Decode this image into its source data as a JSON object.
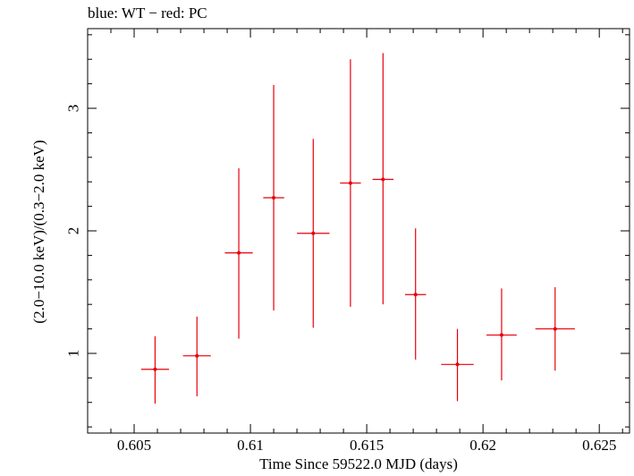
{
  "chart_data": {
    "type": "scatter",
    "title": "blue: WT − red: PC",
    "xlabel": "Time Since 59522.0 MJD (days)",
    "ylabel": "(2.0−10.0 keV)/(0.3−2.0 keV)",
    "xlim": [
      0.603,
      0.6263
    ],
    "ylim": [
      0.35,
      3.65
    ],
    "x_ticks": [
      0.605,
      0.61,
      0.615,
      0.62,
      0.625
    ],
    "x_tick_labels": [
      "0.605",
      "0.61",
      "0.615",
      "0.62",
      "0.625"
    ],
    "y_ticks": [
      1,
      2,
      3
    ],
    "y_tick_labels": [
      "1",
      "2",
      "3"
    ],
    "grid": false,
    "legend": "none",
    "series": [
      {
        "color": "#e8000b",
        "points": [
          {
            "x": 0.6059,
            "xerr": 0.0006,
            "y": 0.87,
            "ylo": 0.59,
            "yhi": 1.14
          },
          {
            "x": 0.6077,
            "xerr": 0.0006,
            "y": 0.98,
            "ylo": 0.65,
            "yhi": 1.3
          },
          {
            "x": 0.6095,
            "xerr": 0.0006,
            "y": 1.82,
            "ylo": 1.12,
            "yhi": 2.51
          },
          {
            "x": 0.611,
            "xerr": 0.00045,
            "y": 2.27,
            "ylo": 1.35,
            "yhi": 3.19
          },
          {
            "x": 0.6127,
            "xerr": 0.0007,
            "y": 1.98,
            "ylo": 1.21,
            "yhi": 2.75
          },
          {
            "x": 0.6143,
            "xerr": 0.00045,
            "y": 2.39,
            "ylo": 1.38,
            "yhi": 3.4
          },
          {
            "x": 0.6157,
            "xerr": 0.00045,
            "y": 2.42,
            "ylo": 1.4,
            "yhi": 3.45
          },
          {
            "x": 0.6171,
            "xerr": 0.00045,
            "y": 1.48,
            "ylo": 0.95,
            "yhi": 2.02
          },
          {
            "x": 0.6189,
            "xerr": 0.0007,
            "y": 0.91,
            "ylo": 0.61,
            "yhi": 1.2
          },
          {
            "x": 0.6208,
            "xerr": 0.00065,
            "y": 1.15,
            "ylo": 0.78,
            "yhi": 1.53
          },
          {
            "x": 0.6231,
            "xerr": 0.00085,
            "y": 1.2,
            "ylo": 0.86,
            "yhi": 1.54
          }
        ]
      }
    ]
  }
}
